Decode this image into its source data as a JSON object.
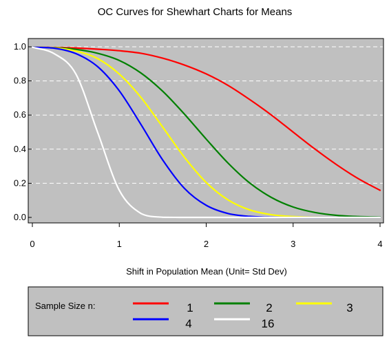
{
  "chart_data": {
    "type": "line",
    "title": "OC Curves for Shewhart Charts for Means",
    "xlabel": "Shift in Population Mean (Unit= Std Dev)",
    "ylabel": "",
    "xlim": [
      0,
      4
    ],
    "ylim": [
      0,
      1
    ],
    "x_ticks": [
      "0",
      "1",
      "2",
      "3",
      "4"
    ],
    "y_ticks": [
      "0.0",
      "0.2",
      "0.4",
      "0.6",
      "0.8",
      "1.0"
    ],
    "grid": "horizontal dashed",
    "plot_background": "#c0c0c0",
    "legend": {
      "title": "Sample Size n:",
      "placement": "bottom"
    },
    "x": [
      0,
      0.25,
      0.5,
      0.75,
      1.0,
      1.25,
      1.5,
      1.75,
      2.0,
      2.25,
      2.5,
      2.75,
      3.0,
      3.25,
      3.5,
      3.75,
      4.0
    ],
    "series": [
      {
        "name": "1",
        "color": "#ff0000",
        "values": [
          0.997,
          0.996,
          0.993,
          0.986,
          0.977,
          0.962,
          0.933,
          0.893,
          0.841,
          0.774,
          0.691,
          0.6,
          0.5,
          0.401,
          0.309,
          0.227,
          0.159
        ]
      },
      {
        "name": "2",
        "color": "#008000",
        "values": [
          0.997,
          0.995,
          0.985,
          0.962,
          0.92,
          0.846,
          0.739,
          0.605,
          0.459,
          0.319,
          0.202,
          0.117,
          0.061,
          0.029,
          0.012,
          0.005,
          0.002
        ]
      },
      {
        "name": "3",
        "color": "#ffff00",
        "values": [
          0.997,
          0.994,
          0.975,
          0.931,
          0.84,
          0.703,
          0.529,
          0.352,
          0.205,
          0.103,
          0.044,
          0.016,
          0.005,
          0.001,
          0.0,
          0.0,
          0.0
        ]
      },
      {
        "name": "4",
        "color": "#0000ff",
        "values": [
          0.997,
          0.992,
          0.96,
          0.884,
          0.742,
          0.544,
          0.336,
          0.17,
          0.071,
          0.023,
          0.006,
          0.001,
          0.0,
          0.0,
          0.0,
          0.0,
          0.0
        ]
      },
      {
        "name": "16",
        "color": "#ffffff",
        "values": [
          0.997,
          0.96,
          0.841,
          0.5,
          0.159,
          0.023,
          0.001,
          0.0,
          0.0,
          0.0,
          0.0,
          0.0,
          0.0,
          0.0,
          0.0,
          0.0,
          0.0
        ]
      }
    ]
  }
}
